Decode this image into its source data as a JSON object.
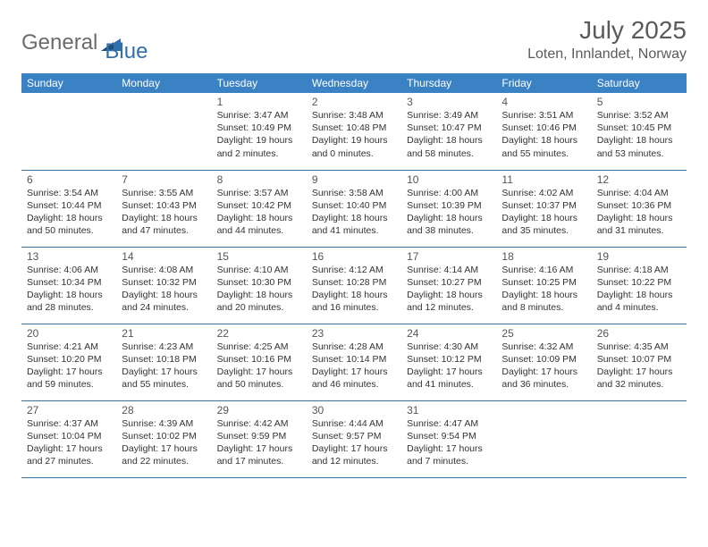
{
  "logo": {
    "general": "General",
    "blue": "Blue"
  },
  "title": "July 2025",
  "location": "Loten, Innlandet, Norway",
  "colors": {
    "header_bg": "#3b82c4",
    "header_text": "#ffffff",
    "border": "#3b6fa0",
    "text": "#333333",
    "muted": "#5a5a5a",
    "logo_gray": "#6b6b6b",
    "logo_blue": "#2f6fab"
  },
  "typography": {
    "title_fontsize": 28,
    "location_fontsize": 16,
    "dayhead_fontsize": 12,
    "daynum_fontsize": 12,
    "info_fontsize": 10.5
  },
  "day_headers": [
    "Sunday",
    "Monday",
    "Tuesday",
    "Wednesday",
    "Thursday",
    "Friday",
    "Saturday"
  ],
  "weeks": [
    [
      null,
      null,
      {
        "n": "1",
        "sunrise": "3:47 AM",
        "sunset": "10:49 PM",
        "dl_h": 19,
        "dl_m": 2
      },
      {
        "n": "2",
        "sunrise": "3:48 AM",
        "sunset": "10:48 PM",
        "dl_h": 19,
        "dl_m": 0
      },
      {
        "n": "3",
        "sunrise": "3:49 AM",
        "sunset": "10:47 PM",
        "dl_h": 18,
        "dl_m": 58
      },
      {
        "n": "4",
        "sunrise": "3:51 AM",
        "sunset": "10:46 PM",
        "dl_h": 18,
        "dl_m": 55
      },
      {
        "n": "5",
        "sunrise": "3:52 AM",
        "sunset": "10:45 PM",
        "dl_h": 18,
        "dl_m": 53
      }
    ],
    [
      {
        "n": "6",
        "sunrise": "3:54 AM",
        "sunset": "10:44 PM",
        "dl_h": 18,
        "dl_m": 50
      },
      {
        "n": "7",
        "sunrise": "3:55 AM",
        "sunset": "10:43 PM",
        "dl_h": 18,
        "dl_m": 47
      },
      {
        "n": "8",
        "sunrise": "3:57 AM",
        "sunset": "10:42 PM",
        "dl_h": 18,
        "dl_m": 44
      },
      {
        "n": "9",
        "sunrise": "3:58 AM",
        "sunset": "10:40 PM",
        "dl_h": 18,
        "dl_m": 41
      },
      {
        "n": "10",
        "sunrise": "4:00 AM",
        "sunset": "10:39 PM",
        "dl_h": 18,
        "dl_m": 38
      },
      {
        "n": "11",
        "sunrise": "4:02 AM",
        "sunset": "10:37 PM",
        "dl_h": 18,
        "dl_m": 35
      },
      {
        "n": "12",
        "sunrise": "4:04 AM",
        "sunset": "10:36 PM",
        "dl_h": 18,
        "dl_m": 31
      }
    ],
    [
      {
        "n": "13",
        "sunrise": "4:06 AM",
        "sunset": "10:34 PM",
        "dl_h": 18,
        "dl_m": 28
      },
      {
        "n": "14",
        "sunrise": "4:08 AM",
        "sunset": "10:32 PM",
        "dl_h": 18,
        "dl_m": 24
      },
      {
        "n": "15",
        "sunrise": "4:10 AM",
        "sunset": "10:30 PM",
        "dl_h": 18,
        "dl_m": 20
      },
      {
        "n": "16",
        "sunrise": "4:12 AM",
        "sunset": "10:28 PM",
        "dl_h": 18,
        "dl_m": 16
      },
      {
        "n": "17",
        "sunrise": "4:14 AM",
        "sunset": "10:27 PM",
        "dl_h": 18,
        "dl_m": 12
      },
      {
        "n": "18",
        "sunrise": "4:16 AM",
        "sunset": "10:25 PM",
        "dl_h": 18,
        "dl_m": 8
      },
      {
        "n": "19",
        "sunrise": "4:18 AM",
        "sunset": "10:22 PM",
        "dl_h": 18,
        "dl_m": 4
      }
    ],
    [
      {
        "n": "20",
        "sunrise": "4:21 AM",
        "sunset": "10:20 PM",
        "dl_h": 17,
        "dl_m": 59
      },
      {
        "n": "21",
        "sunrise": "4:23 AM",
        "sunset": "10:18 PM",
        "dl_h": 17,
        "dl_m": 55
      },
      {
        "n": "22",
        "sunrise": "4:25 AM",
        "sunset": "10:16 PM",
        "dl_h": 17,
        "dl_m": 50
      },
      {
        "n": "23",
        "sunrise": "4:28 AM",
        "sunset": "10:14 PM",
        "dl_h": 17,
        "dl_m": 46
      },
      {
        "n": "24",
        "sunrise": "4:30 AM",
        "sunset": "10:12 PM",
        "dl_h": 17,
        "dl_m": 41
      },
      {
        "n": "25",
        "sunrise": "4:32 AM",
        "sunset": "10:09 PM",
        "dl_h": 17,
        "dl_m": 36
      },
      {
        "n": "26",
        "sunrise": "4:35 AM",
        "sunset": "10:07 PM",
        "dl_h": 17,
        "dl_m": 32
      }
    ],
    [
      {
        "n": "27",
        "sunrise": "4:37 AM",
        "sunset": "10:04 PM",
        "dl_h": 17,
        "dl_m": 27
      },
      {
        "n": "28",
        "sunrise": "4:39 AM",
        "sunset": "10:02 PM",
        "dl_h": 17,
        "dl_m": 22
      },
      {
        "n": "29",
        "sunrise": "4:42 AM",
        "sunset": "9:59 PM",
        "dl_h": 17,
        "dl_m": 17
      },
      {
        "n": "30",
        "sunrise": "4:44 AM",
        "sunset": "9:57 PM",
        "dl_h": 17,
        "dl_m": 12
      },
      {
        "n": "31",
        "sunrise": "4:47 AM",
        "sunset": "9:54 PM",
        "dl_h": 17,
        "dl_m": 7
      },
      null,
      null
    ]
  ]
}
